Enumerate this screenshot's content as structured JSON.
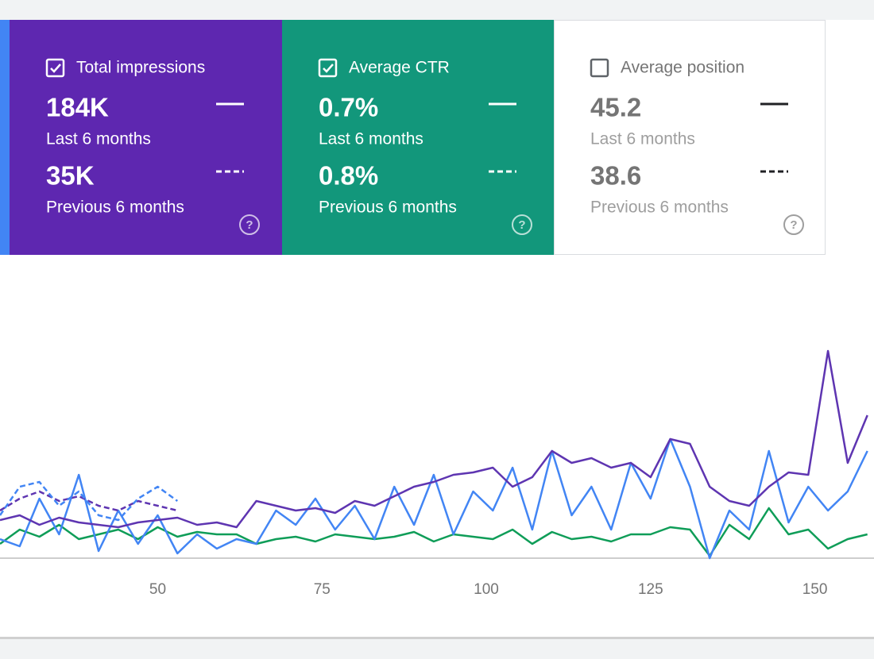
{
  "cards": [
    {
      "label": "Total impressions",
      "current": "184K",
      "current_period": "Last 6 months",
      "previous": "35K",
      "previous_period": "Previous 6 months"
    },
    {
      "label": "Average CTR",
      "current": "0.7%",
      "current_period": "Last 6 months",
      "previous": "0.8%",
      "previous_period": "Previous 6 months"
    },
    {
      "label": "Average position",
      "current": "45.2",
      "current_period": "Last 6 months",
      "previous": "38.6",
      "previous_period": "Previous 6 months"
    }
  ],
  "chart_data": {
    "type": "line",
    "x": [
      26,
      29,
      32,
      35,
      38,
      41,
      44,
      47,
      50,
      53,
      56,
      59,
      62,
      65,
      68,
      71,
      74,
      77,
      80,
      83,
      86,
      89,
      92,
      95,
      98,
      101,
      104,
      107,
      110,
      113,
      116,
      119,
      122,
      125,
      128,
      131,
      134,
      137,
      140,
      143,
      146,
      149,
      152,
      155,
      158
    ],
    "xlim": [
      26,
      159
    ],
    "xticks": [
      50,
      75,
      100,
      125,
      150
    ],
    "ylim": [
      0,
      100
    ],
    "series": [
      {
        "color": "#5e35b1",
        "values": [
          16,
          18,
          14,
          17,
          15,
          14,
          13,
          15,
          16,
          17,
          14,
          15,
          13,
          24,
          22,
          20,
          21,
          19,
          24,
          22,
          26,
          30,
          32,
          35,
          36,
          38,
          30,
          34,
          45,
          40,
          42,
          38,
          40,
          34,
          50,
          48,
          30,
          24,
          22,
          30,
          36,
          35,
          87,
          40,
          60
        ]
      },
      {
        "color": "#4285f4",
        "values": [
          8,
          5,
          25,
          10,
          35,
          3,
          20,
          6,
          18,
          2,
          10,
          4,
          8,
          6,
          20,
          14,
          25,
          12,
          22,
          8,
          30,
          14,
          35,
          10,
          28,
          20,
          38,
          12,
          45,
          18,
          30,
          12,
          40,
          25,
          50,
          30,
          0,
          20,
          12,
          45,
          15,
          30,
          20,
          28,
          45
        ]
      },
      {
        "color": "#0f9d58",
        "values": [
          6,
          12,
          9,
          14,
          8,
          10,
          12,
          8,
          13,
          9,
          11,
          10,
          10,
          6,
          8,
          9,
          7,
          10,
          9,
          8,
          9,
          11,
          7,
          10,
          9,
          8,
          12,
          6,
          11,
          8,
          9,
          7,
          10,
          10,
          13,
          12,
          1,
          14,
          8,
          21,
          10,
          12,
          4,
          8,
          10
        ]
      },
      {
        "color": "#5e35b1",
        "style": "dashed",
        "values": [
          20,
          25,
          28,
          24,
          26,
          22,
          20,
          24,
          22,
          20,
          null,
          null,
          null,
          null,
          null,
          null,
          null,
          null,
          null,
          null,
          null,
          null,
          null,
          null,
          null,
          null,
          null,
          null,
          null,
          null,
          null,
          null,
          null,
          null,
          null,
          null,
          null,
          null,
          null,
          null,
          null,
          null,
          null,
          null,
          null
        ]
      },
      {
        "color": "#4285f4",
        "style": "dashed",
        "values": [
          18,
          30,
          32,
          22,
          28,
          18,
          16,
          25,
          30,
          24,
          null,
          null,
          null,
          null,
          null,
          null,
          null,
          null,
          null,
          null,
          null,
          null,
          null,
          null,
          null,
          null,
          null,
          null,
          null,
          null,
          null,
          null,
          null,
          null,
          null,
          null,
          null,
          null,
          null,
          null,
          null,
          null,
          null,
          null,
          null
        ]
      }
    ]
  }
}
